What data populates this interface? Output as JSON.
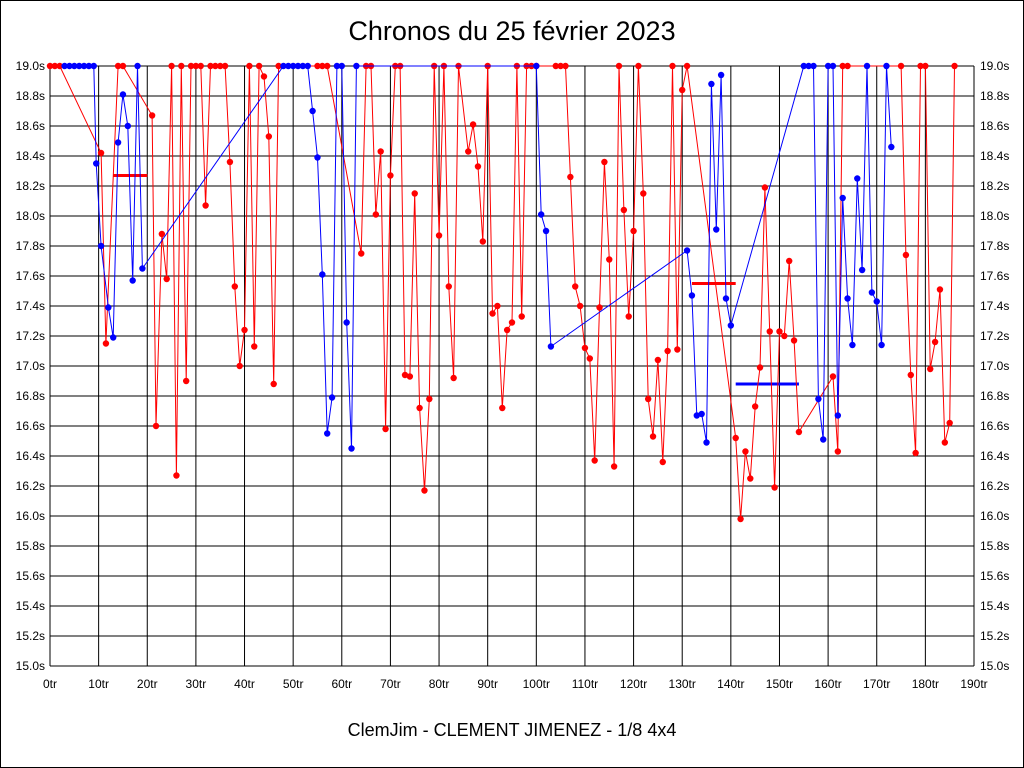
{
  "chart_data": {
    "type": "line",
    "title": "Chronos du 25 février 2023",
    "footer": "ClemJim - CLEMENT JIMENEZ - 1/8 4x4",
    "xlabel": "",
    "ylabel": "",
    "xlim": [
      0,
      190
    ],
    "ylim": [
      15.0,
      19.0
    ],
    "x_ticks": [
      "0tr",
      "10tr",
      "20tr",
      "30tr",
      "40tr",
      "50tr",
      "60tr",
      "70tr",
      "80tr",
      "90tr",
      "100tr",
      "110tr",
      "120tr",
      "130tr",
      "140tr",
      "150tr",
      "160tr",
      "170tr",
      "180tr",
      "190tr"
    ],
    "y_ticks": [
      "19.0s",
      "18.8s",
      "18.6s",
      "18.4s",
      "18.2s",
      "18.0s",
      "17.8s",
      "17.6s",
      "17.4s",
      "17.2s",
      "17.0s",
      "16.8s",
      "16.6s",
      "16.4s",
      "16.2s",
      "16.0s",
      "15.8s",
      "15.6s",
      "15.4s",
      "15.2s",
      "15.0s"
    ],
    "grid": true,
    "series": [
      {
        "color": "#ff0000",
        "points": [
          [
            0,
            19
          ],
          [
            1,
            19
          ],
          [
            2,
            19
          ],
          [
            10.5,
            18.42
          ],
          [
            11.5,
            17.15
          ],
          [
            14,
            19
          ],
          [
            15,
            19
          ],
          [
            21,
            18.67
          ],
          [
            21.8,
            16.6
          ],
          [
            23,
            17.88
          ],
          [
            24,
            17.58
          ],
          [
            25,
            19
          ],
          [
            26,
            16.27
          ],
          [
            27,
            19
          ],
          [
            28,
            16.9
          ],
          [
            29,
            19
          ],
          [
            30,
            19
          ],
          [
            31,
            19
          ],
          [
            32,
            18.07
          ],
          [
            33,
            19
          ],
          [
            34,
            19
          ],
          [
            35,
            19
          ],
          [
            36,
            19
          ],
          [
            37,
            18.36
          ],
          [
            38,
            17.53
          ],
          [
            39,
            17.0
          ],
          [
            40,
            17.24
          ],
          [
            41,
            19
          ],
          [
            42,
            17.13
          ],
          [
            43,
            19
          ],
          [
            44,
            18.93
          ],
          [
            45,
            18.53
          ],
          [
            46,
            16.88
          ],
          [
            47,
            19
          ],
          [
            55,
            19
          ],
          [
            56,
            19
          ],
          [
            57,
            19
          ],
          [
            64,
            17.75
          ],
          [
            65,
            19
          ],
          [
            66,
            19
          ],
          [
            67,
            18.01
          ],
          [
            68,
            18.43
          ],
          [
            69,
            16.58
          ],
          [
            70,
            18.27
          ],
          [
            71,
            19
          ],
          [
            72,
            19
          ],
          [
            73,
            16.94
          ],
          [
            74,
            16.93
          ],
          [
            75,
            18.15
          ],
          [
            76,
            16.72
          ],
          [
            77,
            16.17
          ],
          [
            78,
            16.78
          ],
          [
            79,
            19
          ],
          [
            80,
            17.87
          ],
          [
            81,
            19
          ],
          [
            82,
            17.53
          ],
          [
            83,
            16.92
          ],
          [
            84,
            19
          ],
          [
            86,
            18.43
          ],
          [
            87,
            18.61
          ],
          [
            88,
            18.33
          ],
          [
            89,
            17.83
          ],
          [
            90,
            19
          ],
          [
            91,
            17.35
          ],
          [
            92,
            17.4
          ],
          [
            93,
            16.72
          ],
          [
            94,
            17.24
          ],
          [
            95,
            17.29
          ],
          [
            96,
            19
          ],
          [
            97,
            17.33
          ],
          [
            98,
            19
          ],
          [
            99,
            19
          ],
          [
            100,
            19
          ],
          [
            104,
            19
          ],
          [
            105,
            19
          ],
          [
            106,
            19
          ],
          [
            107,
            18.26
          ],
          [
            108,
            17.53
          ],
          [
            109,
            17.4
          ],
          [
            110,
            17.12
          ],
          [
            111,
            17.05
          ],
          [
            112,
            16.37
          ],
          [
            113,
            17.39
          ],
          [
            114,
            18.36
          ],
          [
            115,
            17.71
          ],
          [
            116,
            16.33
          ],
          [
            117,
            19
          ],
          [
            118,
            18.04
          ],
          [
            119,
            17.33
          ],
          [
            120,
            17.9
          ],
          [
            121,
            19
          ],
          [
            122,
            18.15
          ],
          [
            123,
            16.78
          ],
          [
            124,
            16.53
          ],
          [
            125,
            17.04
          ],
          [
            126,
            16.36
          ],
          [
            127,
            17.1
          ],
          [
            128,
            19
          ],
          [
            129,
            17.11
          ],
          [
            130,
            18.84
          ],
          [
            131,
            19
          ],
          [
            141,
            16.52
          ],
          [
            142,
            15.98
          ],
          [
            143,
            16.43
          ],
          [
            144,
            16.25
          ],
          [
            145,
            16.73
          ],
          [
            146,
            16.99
          ],
          [
            147,
            18.19
          ],
          [
            148,
            17.23
          ],
          [
            149,
            16.19
          ],
          [
            150,
            17.23
          ],
          [
            151,
            17.2
          ],
          [
            152,
            17.7
          ],
          [
            153,
            17.17
          ],
          [
            154,
            16.56
          ],
          [
            161,
            16.93
          ],
          [
            162,
            16.43
          ],
          [
            163,
            19
          ],
          [
            164,
            19
          ],
          [
            175,
            19
          ],
          [
            176,
            17.74
          ],
          [
            177,
            16.94
          ],
          [
            178,
            16.42
          ],
          [
            179,
            19
          ],
          [
            180,
            19
          ],
          [
            181,
            16.98
          ],
          [
            182,
            17.16
          ],
          [
            183,
            17.51
          ],
          [
            184,
            16.49
          ],
          [
            185,
            16.62
          ],
          [
            186,
            19
          ]
        ]
      },
      {
        "color": "#0000ff",
        "points": [
          [
            3,
            19
          ],
          [
            4,
            19
          ],
          [
            5,
            19
          ],
          [
            6,
            19
          ],
          [
            7,
            19
          ],
          [
            8,
            19
          ],
          [
            9,
            19
          ],
          [
            9.5,
            18.35
          ],
          [
            10.5,
            17.8
          ],
          [
            12,
            17.39
          ],
          [
            13,
            17.19
          ],
          [
            14,
            18.49
          ],
          [
            15,
            18.81
          ],
          [
            16,
            18.6
          ],
          [
            17,
            17.57
          ],
          [
            18,
            19
          ],
          [
            19,
            17.65
          ],
          [
            48,
            19
          ],
          [
            49,
            19
          ],
          [
            50,
            19
          ],
          [
            51,
            19
          ],
          [
            52,
            19
          ],
          [
            53,
            19
          ],
          [
            54,
            18.7
          ],
          [
            55,
            18.39
          ],
          [
            56,
            17.61
          ],
          [
            57,
            16.55
          ],
          [
            58,
            16.79
          ],
          [
            59,
            19
          ],
          [
            60,
            19
          ],
          [
            61,
            17.29
          ],
          [
            62,
            16.45
          ],
          [
            63,
            19
          ],
          [
            100,
            19
          ],
          [
            101,
            18.01
          ],
          [
            102,
            17.9
          ],
          [
            103,
            17.13
          ],
          [
            131,
            17.77
          ],
          [
            132,
            17.47
          ],
          [
            133,
            16.67
          ],
          [
            134,
            16.68
          ],
          [
            135,
            16.49
          ],
          [
            136,
            18.88
          ],
          [
            137,
            17.91
          ],
          [
            138,
            18.94
          ],
          [
            139,
            17.45
          ],
          [
            140,
            17.27
          ],
          [
            155,
            19
          ],
          [
            156,
            19
          ],
          [
            157,
            19
          ],
          [
            158,
            16.78
          ],
          [
            159,
            16.51
          ],
          [
            160,
            19
          ],
          [
            161,
            19
          ],
          [
            162,
            16.67
          ],
          [
            163,
            18.12
          ],
          [
            164,
            17.45
          ],
          [
            165,
            17.14
          ],
          [
            166,
            18.25
          ],
          [
            167,
            17.64
          ],
          [
            168,
            19
          ],
          [
            169,
            17.49
          ],
          [
            170,
            17.43
          ],
          [
            171,
            17.14
          ],
          [
            172,
            19
          ],
          [
            173,
            18.46
          ]
        ]
      }
    ],
    "average_lines": [
      {
        "color": "#ff0000",
        "x": [
          13,
          20
        ],
        "y": 18.27
      },
      {
        "color": "#ff0000",
        "x": [
          132,
          141
        ],
        "y": 17.55
      },
      {
        "color": "#0000ff",
        "x": [
          141,
          154
        ],
        "y": 16.88
      }
    ]
  }
}
